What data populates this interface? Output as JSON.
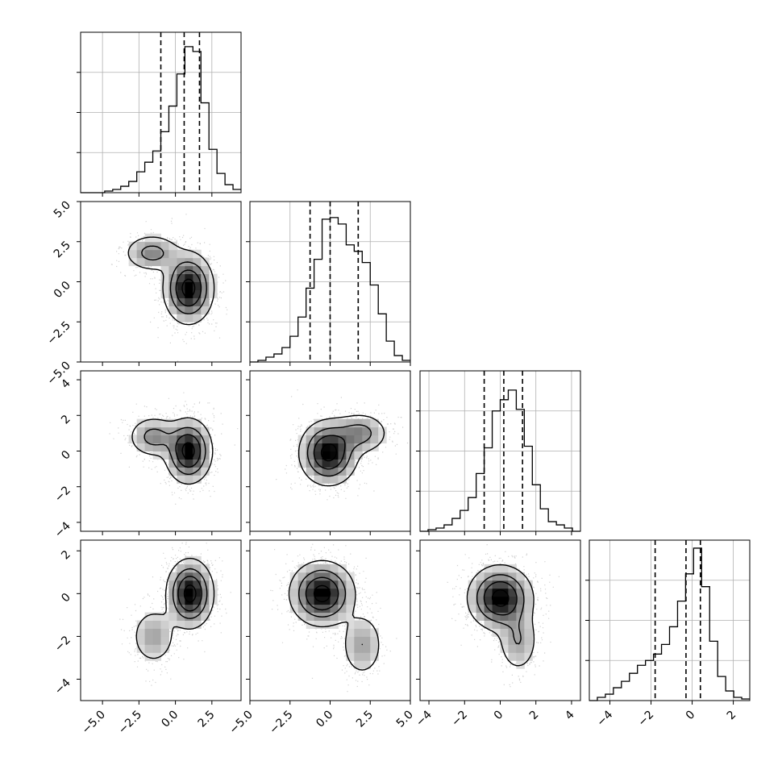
{
  "figure_type": "corner plot",
  "colors": {
    "hist_line": "#000000",
    "contour": "#000000",
    "grid": "#b0b0b0",
    "scatter_point": "#9a9a9a",
    "density_dark": "#000000",
    "density_light": "#ffffff"
  },
  "chart_data": [
    {
      "id": "hist-p0",
      "type": "histogram",
      "grid": true,
      "xlim": [
        -6.5,
        4.5
      ],
      "xticks": [
        -5.0,
        -2.5,
        0.0,
        2.5
      ],
      "xtick_labels": [
        "−5.0",
        "−2.5",
        "0.0",
        "2.5"
      ],
      "ylim": [
        0,
        1.0
      ],
      "quantiles": [
        -1.0,
        0.6,
        1.65
      ],
      "bins": [
        -6.5,
        -5.95,
        -5.4,
        -4.85,
        -4.3,
        -3.75,
        -3.2,
        -2.65,
        -2.1,
        -1.55,
        -1.0,
        -0.45,
        0.1,
        0.65,
        1.2,
        1.75,
        2.3,
        2.85,
        3.4,
        3.95,
        4.5
      ],
      "values": [
        0.0,
        0.0,
        0.0,
        0.01,
        0.02,
        0.04,
        0.07,
        0.13,
        0.19,
        0.26,
        0.38,
        0.54,
        0.74,
        0.91,
        0.88,
        0.56,
        0.27,
        0.12,
        0.05,
        0.02
      ]
    },
    {
      "id": "hist-p1",
      "type": "histogram",
      "grid": true,
      "xlim": [
        -5.0,
        5.0
      ],
      "xticks": [
        -5.0,
        -2.5,
        0.0,
        2.5,
        5.0
      ],
      "xtick_labels": [
        "−5.0",
        "−2.5",
        "0.0",
        "2.5",
        "5.0"
      ],
      "ylim": [
        0,
        1.0
      ],
      "quantiles": [
        -1.25,
        0.0,
        1.75
      ],
      "bins": [
        -5.0,
        -4.5,
        -4.0,
        -3.5,
        -3.0,
        -2.5,
        -2.0,
        -1.5,
        -1.0,
        -0.5,
        0.0,
        0.5,
        1.0,
        1.5,
        2.0,
        2.5,
        3.0,
        3.5,
        4.0,
        4.5,
        5.0
      ],
      "values": [
        0.0,
        0.01,
        0.03,
        0.05,
        0.09,
        0.16,
        0.28,
        0.46,
        0.64,
        0.89,
        0.9,
        0.86,
        0.73,
        0.69,
        0.62,
        0.48,
        0.3,
        0.13,
        0.04,
        0.01
      ]
    },
    {
      "id": "hist-p2",
      "type": "histogram",
      "grid": true,
      "xlim": [
        -4.5,
        4.5
      ],
      "xticks": [
        -4,
        -2,
        0,
        2,
        4
      ],
      "xtick_labels": [
        "−4",
        "−2",
        "0",
        "2",
        "4"
      ],
      "ylim": [
        0,
        1.0
      ],
      "quantiles": [
        -0.9,
        0.2,
        1.25
      ],
      "bins": [
        -4.5,
        -4.05,
        -3.6,
        -3.15,
        -2.7,
        -2.25,
        -1.8,
        -1.35,
        -0.9,
        -0.45,
        0.0,
        0.45,
        0.9,
        1.35,
        1.8,
        2.25,
        2.7,
        3.15,
        3.6,
        4.05,
        4.5
      ],
      "values": [
        0.0,
        0.01,
        0.02,
        0.04,
        0.08,
        0.13,
        0.21,
        0.36,
        0.52,
        0.75,
        0.82,
        0.88,
        0.76,
        0.53,
        0.29,
        0.14,
        0.06,
        0.04,
        0.02,
        0.0
      ]
    },
    {
      "id": "hist-p3",
      "type": "histogram",
      "grid": true,
      "xlim": [
        -5.0,
        2.8
      ],
      "xticks": [
        -4,
        -2,
        0,
        2
      ],
      "xtick_labels": [
        "−4",
        "−2",
        "0",
        "2"
      ],
      "ylim": [
        0,
        1.0
      ],
      "quantiles": [
        -1.8,
        -0.3,
        0.4
      ],
      "bins": [
        -5.0,
        -4.61,
        -4.22,
        -3.83,
        -3.44,
        -3.05,
        -2.66,
        -2.27,
        -1.88,
        -1.49,
        -1.1,
        -0.71,
        -0.32,
        0.07,
        0.46,
        0.85,
        1.24,
        1.63,
        2.02,
        2.41,
        2.8
      ],
      "values": [
        0.0,
        0.02,
        0.04,
        0.08,
        0.12,
        0.17,
        0.22,
        0.25,
        0.29,
        0.35,
        0.46,
        0.62,
        0.79,
        0.95,
        0.71,
        0.37,
        0.15,
        0.06,
        0.02,
        0.01
      ]
    },
    {
      "id": "pair-p0-p1",
      "type": "2d-density",
      "xlim": [
        -6.5,
        4.5
      ],
      "ylim": [
        -5.0,
        5.0
      ],
      "yticks": [
        -5.0,
        -2.5,
        0.0,
        2.5,
        5.0
      ],
      "ytick_labels": [
        "−5.0",
        "−2.5",
        "0.0",
        "2.5",
        "5.0"
      ],
      "components": [
        {
          "x": 0.9,
          "y": -0.4,
          "sx": 0.85,
          "sy": 1.1,
          "w": 1.0
        },
        {
          "x": -1.6,
          "y": 1.8,
          "sx": 1.0,
          "sy": 0.6,
          "w": 0.45
        }
      ]
    },
    {
      "id": "pair-p0-p2",
      "type": "2d-density",
      "xlim": [
        -6.5,
        4.5
      ],
      "ylim": [
        -4.5,
        4.5
      ],
      "yticks": [
        -4,
        -2,
        0,
        2,
        4
      ],
      "ytick_labels": [
        "−4",
        "−2",
        "0",
        "2",
        "4"
      ],
      "components": [
        {
          "x": 0.9,
          "y": 0.0,
          "sx": 0.8,
          "sy": 0.9,
          "w": 1.0
        },
        {
          "x": -1.5,
          "y": 0.8,
          "sx": 0.9,
          "sy": 0.6,
          "w": 0.45
        }
      ]
    },
    {
      "id": "pair-p0-p3",
      "type": "2d-density",
      "xlim": [
        -6.5,
        4.5
      ],
      "ylim": [
        -5.0,
        2.5
      ],
      "yticks": [
        -4,
        -2,
        0,
        2
      ],
      "ytick_labels": [
        "−4",
        "−2",
        "0",
        "2"
      ],
      "components": [
        {
          "x": 1.0,
          "y": 0.0,
          "sx": 0.8,
          "sy": 0.8,
          "w": 1.0
        },
        {
          "x": -1.5,
          "y": -2.0,
          "sx": 0.8,
          "sy": 0.7,
          "w": 0.35
        }
      ]
    },
    {
      "id": "pair-p1-p2",
      "type": "2d-density",
      "xlim": [
        -5.0,
        5.0
      ],
      "ylim": [
        -4.5,
        4.5
      ],
      "components": [
        {
          "x": -0.1,
          "y": -0.1,
          "sx": 0.9,
          "sy": 0.9,
          "w": 1.0
        },
        {
          "x": 1.9,
          "y": 1.0,
          "sx": 0.9,
          "sy": 0.6,
          "w": 0.45
        }
      ]
    },
    {
      "id": "pair-p1-p3",
      "type": "2d-density",
      "xlim": [
        -5.0,
        5.0
      ],
      "ylim": [
        -5.0,
        2.5
      ],
      "components": [
        {
          "x": -0.5,
          "y": 0.0,
          "sx": 1.0,
          "sy": 0.75,
          "w": 1.0
        },
        {
          "x": 2.0,
          "y": -2.4,
          "sx": 0.7,
          "sy": 0.8,
          "w": 0.35
        }
      ]
    },
    {
      "id": "pair-p2-p3",
      "type": "2d-density",
      "xlim": [
        -4.5,
        4.5
      ],
      "ylim": [
        -5.0,
        2.5
      ],
      "components": [
        {
          "x": 0.0,
          "y": -0.2,
          "sx": 0.9,
          "sy": 0.75,
          "w": 1.0
        },
        {
          "x": 1.0,
          "y": -2.2,
          "sx": 0.6,
          "sy": 0.8,
          "w": 0.35
        }
      ]
    }
  ]
}
